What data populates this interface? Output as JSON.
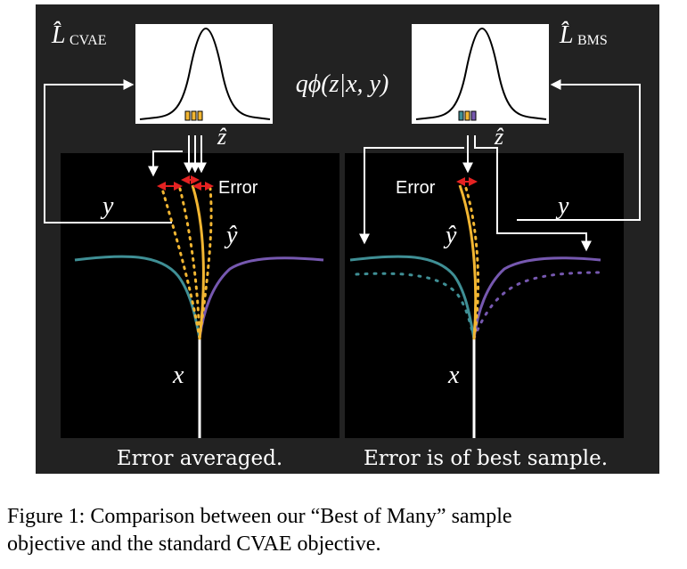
{
  "colors": {
    "background": "#222222",
    "panel": "#000000",
    "teal": "#3f8f95",
    "purple": "#7658b0",
    "gold": "#f2b632",
    "arrow_red": "#e52222",
    "white": "#ffffff"
  },
  "left": {
    "loss_label": "L̂",
    "loss_sub": "CVAE",
    "y_label": "y",
    "x_label": "x",
    "yhat_label": "ŷ",
    "zhat_label": "ẑ",
    "error_label": "Error",
    "footer": "Error averaged."
  },
  "right": {
    "loss_label": "L̂",
    "loss_sub": "BMS",
    "y_label": "y",
    "x_label": "x",
    "yhat_label": "ŷ",
    "zhat_label": "ẑ",
    "error_label": "Error",
    "footer": "Error is of best sample."
  },
  "posterior_label": "qϕ(z|x, y)",
  "caption": {
    "line1": "Figure 1: Comparison between our “Best of Many” sample",
    "line2": "objective and the standard CVAE objective."
  }
}
